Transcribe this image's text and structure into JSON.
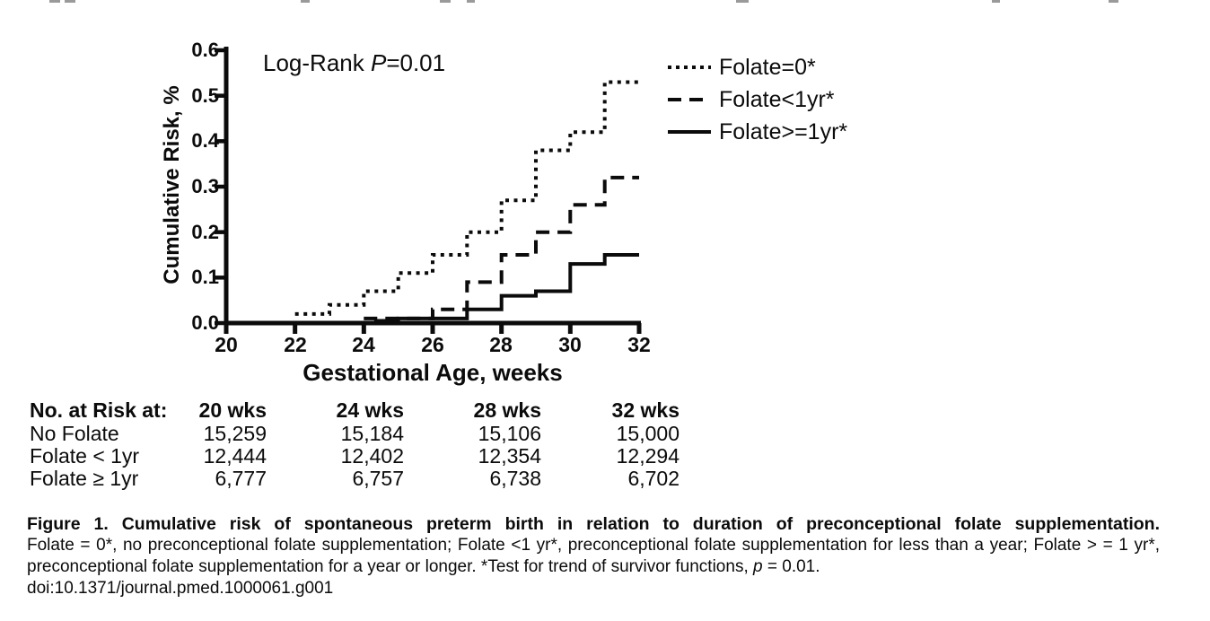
{
  "page": {
    "background": "#ffffff",
    "line_color": "#0b0b0b"
  },
  "chart_data": {
    "type": "line",
    "subtype": "step / cumulative-incidence (Kaplan-Meier style)",
    "title": "",
    "xlabel": "Gestational Age, weeks",
    "ylabel": "Cumulative Risk, %",
    "xlim": [
      20,
      32
    ],
    "ylim": [
      0,
      0.6
    ],
    "grid": false,
    "legend_position": "outside upper right",
    "xtick_labels": [
      "20",
      "22",
      "24",
      "26",
      "28",
      "30",
      "32"
    ],
    "ytick_labels": [
      "0.6",
      "0.5",
      "0.4",
      "0.3",
      "0.2",
      "0.1",
      "0.0"
    ],
    "annotation": {
      "prefix": "Log-Rank ",
      "p_symbol": "P",
      "suffix": "=0.01"
    },
    "series": [
      {
        "name": "Folate=0*",
        "line_style": "dotted",
        "points": [
          {
            "x": 22,
            "y": 0.02
          },
          {
            "x": 23,
            "y": 0.04
          },
          {
            "x": 24,
            "y": 0.07
          },
          {
            "x": 25,
            "y": 0.11
          },
          {
            "x": 26,
            "y": 0.15
          },
          {
            "x": 27,
            "y": 0.2
          },
          {
            "x": 28,
            "y": 0.27
          },
          {
            "x": 29,
            "y": 0.38
          },
          {
            "x": 30,
            "y": 0.42
          },
          {
            "x": 31,
            "y": 0.53
          },
          {
            "x": 32,
            "y": 0.53
          }
        ]
      },
      {
        "name": "Folate<1yr*",
        "line_style": "dashed",
        "points": [
          {
            "x": 24,
            "y": 0.01
          },
          {
            "x": 26,
            "y": 0.03
          },
          {
            "x": 27,
            "y": 0.09
          },
          {
            "x": 28,
            "y": 0.15
          },
          {
            "x": 29,
            "y": 0.2
          },
          {
            "x": 30,
            "y": 0.26
          },
          {
            "x": 31,
            "y": 0.32
          },
          {
            "x": 32,
            "y": 0.32
          }
        ]
      },
      {
        "name": "Folate>=1yr*",
        "line_style": "solid",
        "points": [
          {
            "x": 24.3,
            "y": 0.005
          },
          {
            "x": 25,
            "y": 0.01
          },
          {
            "x": 27,
            "y": 0.03
          },
          {
            "x": 28,
            "y": 0.06
          },
          {
            "x": 29,
            "y": 0.07
          },
          {
            "x": 30,
            "y": 0.13
          },
          {
            "x": 31,
            "y": 0.15
          },
          {
            "x": 32,
            "y": 0.15
          }
        ]
      }
    ]
  },
  "risk_table": {
    "title": "No. at Risk at:",
    "columns": [
      "20 wks",
      "24 wks",
      "28 wks",
      "32 wks"
    ],
    "rows": [
      {
        "label": "No Folate",
        "values": [
          "15,259",
          "15,184",
          "15,106",
          "15,000"
        ]
      },
      {
        "label": "Folate < 1yr",
        "values": [
          "12,444",
          "12,402",
          "12,354",
          "12,294"
        ]
      },
      {
        "label": "Folate ≥ 1yr",
        "values": [
          "6,777",
          "6,757",
          "6,738",
          "6,702"
        ]
      }
    ]
  },
  "caption": {
    "title": "Figure 1. Cumulative risk of spontaneous preterm birth in relation to duration of preconceptional folate supplementation.",
    "body_segments": [
      {
        "text": "Folate = 0*, no preconceptional folate supplementation; Folate <1 yr*, preconceptional folate supplementation for less than a year; Folate > = 1 yr*, preconceptional folate supplementation for a year or longer. *Test for trend of survivor functions, "
      },
      {
        "text": "p",
        "italic": true
      },
      {
        "text": " = 0.01."
      }
    ],
    "doi": "doi:10.1371/journal.pmed.1000061.g001"
  }
}
